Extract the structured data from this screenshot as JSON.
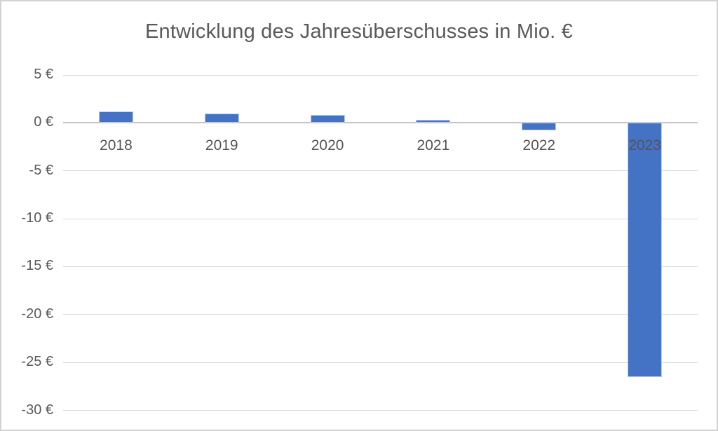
{
  "chart_data": {
    "type": "bar",
    "title": "Entwicklung des Jahresüberschusses in Mio. €",
    "categories": [
      "2018",
      "2019",
      "2020",
      "2021",
      "2022",
      "2023"
    ],
    "values": [
      1.2,
      1.0,
      0.8,
      0.3,
      -0.8,
      -26.5
    ],
    "series_name": "Jahresüberschuss in Mio. €",
    "xlabel": "",
    "ylabel": "",
    "ylim": [
      -30,
      5
    ],
    "y_ticks": [
      5,
      0,
      -5,
      -10,
      -15,
      -20,
      -25,
      -30
    ],
    "y_tick_labels": [
      "5 €",
      "0 €",
      "-5 €",
      "-10 €",
      "-15 €",
      "-20 €",
      "-25 €",
      "-30 €"
    ],
    "grid": true,
    "legend": false,
    "bar_color": "#4472C4",
    "bar_edge_color": "#BCCDEA",
    "gridline_color": "#D9D9D9",
    "zero_line_color": "#C6C6C6",
    "text_color": "#595959",
    "background_color": "#FFFFFF",
    "border_color": "#D2D2D2"
  }
}
